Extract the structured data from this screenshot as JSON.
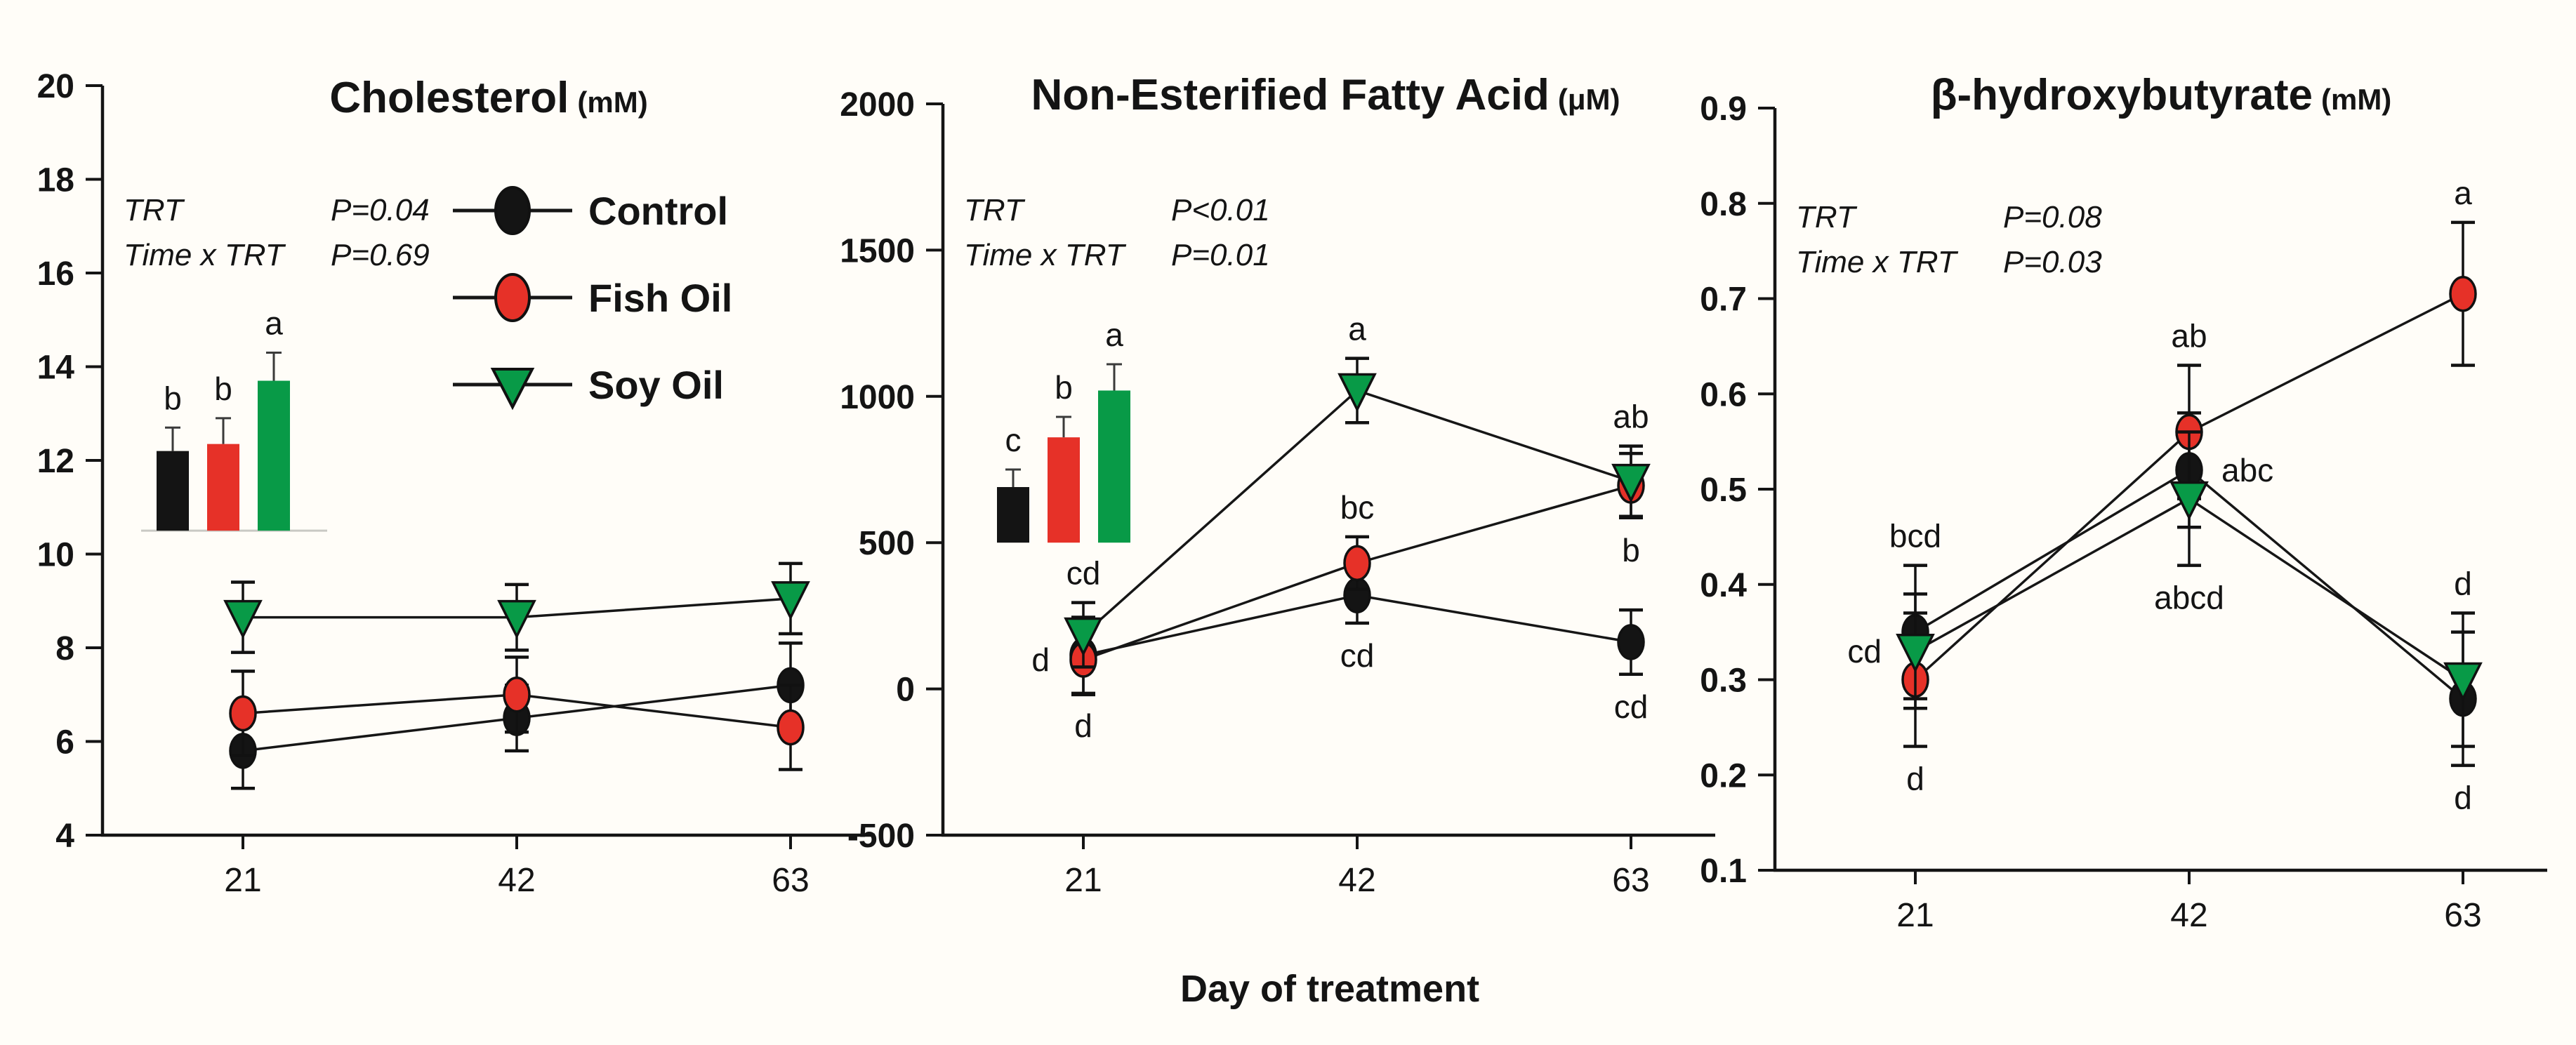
{
  "figure": {
    "xlabel": "Day of treatment",
    "legend": [
      {
        "label": "Control",
        "marker": "ellipse",
        "color": "#141414"
      },
      {
        "label": "Fish Oil",
        "marker": "ellipse",
        "color": "#e63128"
      },
      {
        "label": "Soy Oil",
        "marker": "triangle-down",
        "color": "#089a47"
      }
    ]
  },
  "chart_data": [
    {
      "type": "line",
      "title": "Cholesterol",
      "unit": "(mM)",
      "xlabel": "Day of treatment",
      "x": [
        21,
        42,
        63
      ],
      "ylim": [
        4,
        20
      ],
      "yticks": [
        4,
        6,
        8,
        10,
        12,
        14,
        16,
        18,
        20
      ],
      "ytick_labels": [
        "4",
        "6",
        "8",
        "10",
        "12",
        "14",
        "16",
        "18",
        "20"
      ],
      "stats": [
        {
          "name": "TRT",
          "p": "P=0.04"
        },
        {
          "name": "Time x TRT",
          "p": "P=0.69"
        }
      ],
      "series": [
        {
          "name": "Control",
          "color": "#141414",
          "marker": "ellipse",
          "values": [
            5.8,
            6.5,
            7.2
          ],
          "errors": [
            0.8,
            0.7,
            0.9
          ],
          "letters": [
            null,
            null,
            null
          ]
        },
        {
          "name": "Fish Oil",
          "color": "#e63128",
          "marker": "ellipse",
          "values": [
            6.6,
            7.0,
            6.3
          ],
          "errors": [
            0.9,
            0.8,
            0.9
          ],
          "letters": [
            null,
            null,
            null
          ]
        },
        {
          "name": "Soy Oil",
          "color": "#089a47",
          "marker": "triangle-down",
          "values": [
            8.65,
            8.65,
            9.05
          ],
          "errors": [
            0.75,
            0.7,
            0.75
          ],
          "letters": [
            null,
            null,
            null
          ]
        }
      ],
      "inset_bars": {
        "baseline": 10.5,
        "baseline_line": true,
        "bars": [
          {
            "name": "Control",
            "value": 12.2,
            "error": 0.5,
            "letter": "b",
            "color": "#141414"
          },
          {
            "name": "Fish Oil",
            "value": 12.35,
            "error": 0.55,
            "letter": "b",
            "color": "#e63128"
          },
          {
            "name": "Soy Oil",
            "value": 13.7,
            "error": 0.6,
            "letter": "a",
            "color": "#089a47"
          }
        ]
      }
    },
    {
      "type": "line",
      "title": "Non-Esterified Fatty Acid",
      "unit": "(μM)",
      "xlabel": "Day of treatment",
      "x": [
        21,
        42,
        63
      ],
      "ylim": [
        -500,
        2000
      ],
      "yticks": [
        -500,
        0,
        500,
        1000,
        1500,
        2000
      ],
      "ytick_labels": [
        "-500",
        "0",
        "500",
        "1000",
        "1500",
        "2000"
      ],
      "stats": [
        {
          "name": "TRT",
          "p": "P<0.01"
        },
        {
          "name": "Time x TRT",
          "p": "P=0.01"
        }
      ],
      "series": [
        {
          "name": "Control",
          "color": "#141414",
          "marker": "ellipse",
          "values": [
            115,
            320,
            160
          ],
          "errors": [
            130,
            95,
            110
          ],
          "letters": [
            {
              "text": "d",
              "pos": "below"
            },
            {
              "text": "cd",
              "pos": "below"
            },
            {
              "text": "cd",
              "pos": "below"
            }
          ]
        },
        {
          "name": "Fish Oil",
          "color": "#e63128",
          "marker": "ellipse",
          "values": [
            100,
            430,
            695
          ],
          "errors": [
            120,
            90,
            110
          ],
          "letters": [
            {
              "text": "d",
              "pos": "left"
            },
            {
              "text": "bc",
              "pos": "above"
            },
            {
              "text": "b",
              "pos": "below"
            }
          ]
        },
        {
          "name": "Soy Oil",
          "color": "#089a47",
          "marker": "triangle-down",
          "values": [
            185,
            1020,
            710
          ],
          "errors": [
            110,
            110,
            120
          ],
          "letters": [
            {
              "text": "cd",
              "pos": "above"
            },
            {
              "text": "a",
              "pos": "above"
            },
            {
              "text": "ab",
              "pos": "above"
            }
          ]
        }
      ],
      "inset_bars": {
        "baseline": 500,
        "baseline_line": false,
        "bars": [
          {
            "name": "Control",
            "value": 690,
            "error": 60,
            "letter": "c",
            "color": "#141414"
          },
          {
            "name": "Fish Oil",
            "value": 860,
            "error": 70,
            "letter": "b",
            "color": "#e63128"
          },
          {
            "name": "Soy Oil",
            "value": 1020,
            "error": 90,
            "letter": "a",
            "color": "#089a47"
          }
        ]
      }
    },
    {
      "type": "line",
      "title": "β-hydroxybutyrate",
      "unit": "(mM)",
      "xlabel": "Day of treatment",
      "x": [
        21,
        42,
        63
      ],
      "ylim": [
        0.1,
        0.9
      ],
      "yticks": [
        0.1,
        0.2,
        0.3,
        0.4,
        0.5,
        0.6,
        0.7,
        0.8,
        0.9
      ],
      "ytick_labels": [
        "0.1",
        "0.2",
        "0.3",
        "0.4",
        "0.5",
        "0.6",
        "0.7",
        "0.8",
        "0.9"
      ],
      "stats": [
        {
          "name": "TRT",
          "p": "P=0.08"
        },
        {
          "name": "Time x TRT",
          "p": "P=0.03"
        }
      ],
      "series": [
        {
          "name": "Control",
          "color": "#141414",
          "marker": "ellipse",
          "values": [
            0.35,
            0.52,
            0.28
          ],
          "errors": [
            0.07,
            0.06,
            0.07
          ],
          "letters": [
            {
              "text": "bcd",
              "pos": "above"
            },
            {
              "text": "abc",
              "pos": "right"
            },
            {
              "text": "d",
              "pos": "below"
            }
          ]
        },
        {
          "name": "Fish Oil",
          "color": "#e63128",
          "marker": "ellipse",
          "values": [
            0.3,
            0.56,
            0.705
          ],
          "errors": [
            0.07,
            0.07,
            0.075
          ],
          "letters": [
            {
              "text": "d",
              "pos": "below"
            },
            {
              "text": "ab",
              "pos": "above"
            },
            {
              "text": "a",
              "pos": "above"
            }
          ]
        },
        {
          "name": "Soy Oil",
          "color": "#089a47",
          "marker": "triangle-down",
          "values": [
            0.33,
            0.49,
            0.3
          ],
          "errors": [
            0.06,
            0.07,
            0.07
          ],
          "letters": [
            {
              "text": "cd",
              "pos": "left"
            },
            {
              "text": "abcd",
              "pos": "below"
            },
            {
              "text": "d",
              "pos": "above"
            }
          ]
        }
      ],
      "inset_bars": null
    }
  ]
}
